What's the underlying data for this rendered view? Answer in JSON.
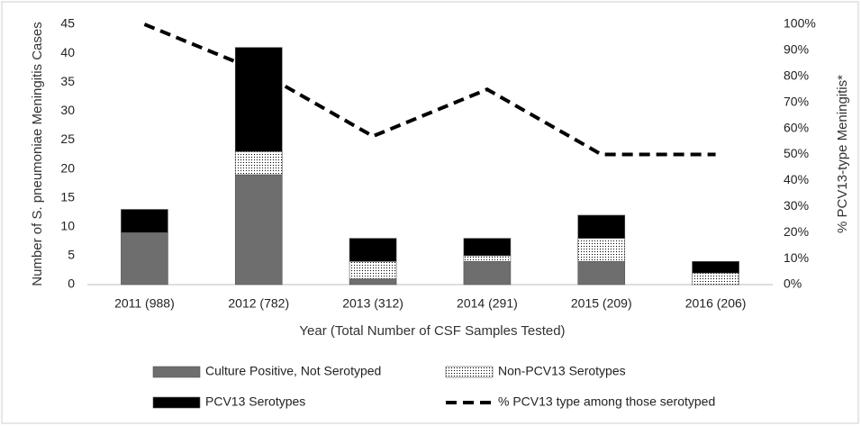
{
  "chart_data": {
    "type": "bar",
    "stacked": true,
    "x_label": "Year (Total Number of CSF Samples Tested)",
    "y_label": "Number of S. pneumoniae Meningitis Cases",
    "y2_label": "% PCV13-type Meningitis*",
    "categories": [
      "2011 (988)",
      "2012 (782)",
      "2013 (312)",
      "2014 (291)",
      "2015 (209)",
      "2016 (206)"
    ],
    "series": [
      {
        "name": "Culture Positive, Not Serotyped",
        "color": "#6e6e6e",
        "values": [
          9,
          19,
          1,
          4,
          4,
          0
        ]
      },
      {
        "name": "Non-PCV13 Serotypes",
        "color": "#ffffff",
        "pattern": "dots",
        "values": [
          0,
          4,
          3,
          1,
          4,
          2
        ]
      },
      {
        "name": "PCV13 Serotypes",
        "color": "#000000",
        "values": [
          4,
          18,
          4,
          3,
          4,
          2
        ]
      },
      {
        "name": "% PCV13 type among those serotyped",
        "type": "line",
        "dashed": true,
        "axis": "y2",
        "color": "#000000",
        "values": [
          100,
          82,
          57,
          75,
          50,
          50
        ]
      }
    ],
    "ylim": [
      0,
      45
    ],
    "yticks": [
      0,
      5,
      10,
      15,
      20,
      25,
      30,
      35,
      40,
      45
    ],
    "y2lim": [
      0,
      100
    ],
    "y2ticks": [
      {
        "value": 0,
        "label": "0%"
      },
      {
        "value": 10,
        "label": "10%"
      },
      {
        "value": 20,
        "label": "20%"
      },
      {
        "value": 30,
        "label": "30%"
      },
      {
        "value": 40,
        "label": "40%"
      },
      {
        "value": 50,
        "label": "50%"
      },
      {
        "value": 60,
        "label": "60%"
      },
      {
        "value": 70,
        "label": "70%"
      },
      {
        "value": 80,
        "label": "80%"
      },
      {
        "value": 90,
        "label": "90%"
      },
      {
        "value": 100,
        "label": "100%"
      }
    ],
    "legend": "bottom"
  }
}
